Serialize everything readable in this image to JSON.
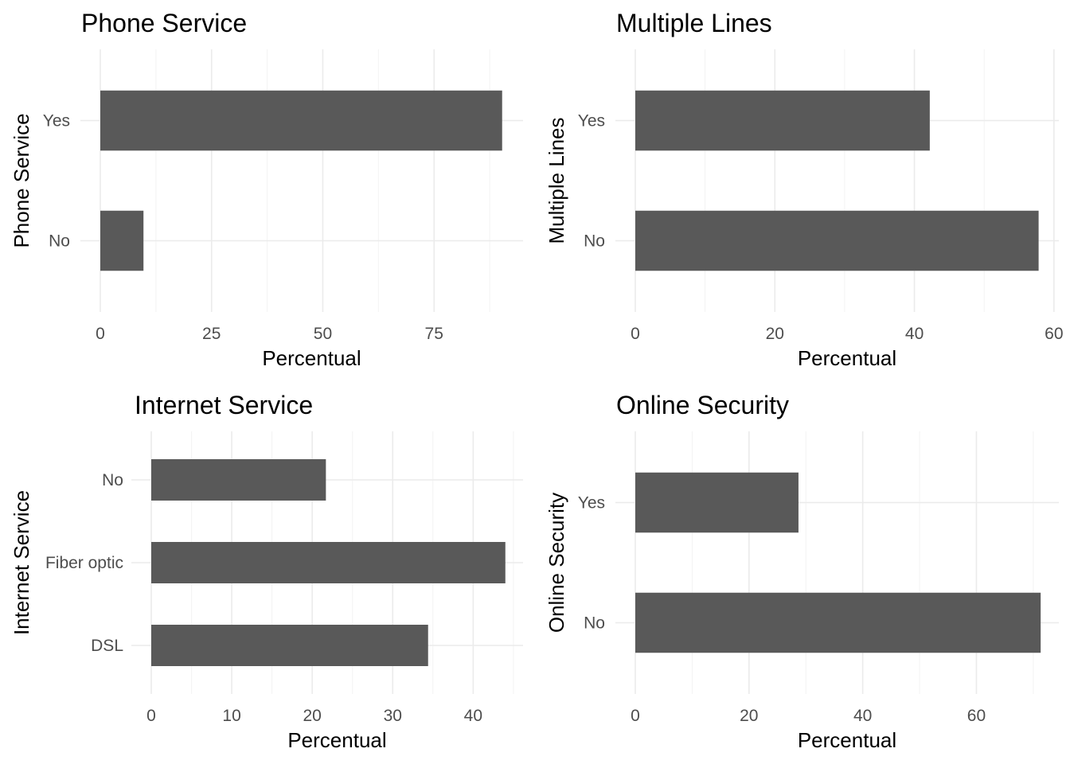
{
  "chart_data": [
    {
      "type": "bar",
      "orientation": "horizontal",
      "title": "Phone Service",
      "xlabel": "Percentual",
      "ylabel": "Phone Service",
      "categories": [
        "No",
        "Yes"
      ],
      "values": [
        9.7,
        90.3
      ],
      "xlim": [
        0,
        95
      ],
      "xticks": [
        0,
        25,
        50,
        75
      ],
      "bar_color": "#595959",
      "grid": true
    },
    {
      "type": "bar",
      "orientation": "horizontal",
      "title": "Multiple Lines",
      "xlabel": "Percentual",
      "ylabel": "Multiple Lines",
      "categories": [
        "No",
        "Yes"
      ],
      "values": [
        57.8,
        42.2
      ],
      "xlim": [
        0,
        60.7
      ],
      "xticks": [
        0,
        20,
        40,
        60
      ],
      "bar_color": "#595959",
      "grid": true
    },
    {
      "type": "bar",
      "orientation": "horizontal",
      "title": "Internet Service",
      "xlabel": "Percentual",
      "ylabel": "Internet Service",
      "categories": [
        "DSL",
        "Fiber optic",
        "No"
      ],
      "values": [
        34.4,
        44.0,
        21.7
      ],
      "xlim": [
        0,
        46.2
      ],
      "xticks": [
        0,
        10,
        20,
        30,
        40
      ],
      "bar_color": "#595959",
      "grid": true
    },
    {
      "type": "bar",
      "orientation": "horizontal",
      "title": "Online Security",
      "xlabel": "Percentual",
      "ylabel": "Online Security",
      "categories": [
        "No",
        "Yes"
      ],
      "values": [
        71.3,
        28.7
      ],
      "xlim": [
        0,
        74.5
      ],
      "xticks": [
        0,
        20,
        40,
        60
      ],
      "bar_color": "#595959",
      "grid": true
    }
  ]
}
